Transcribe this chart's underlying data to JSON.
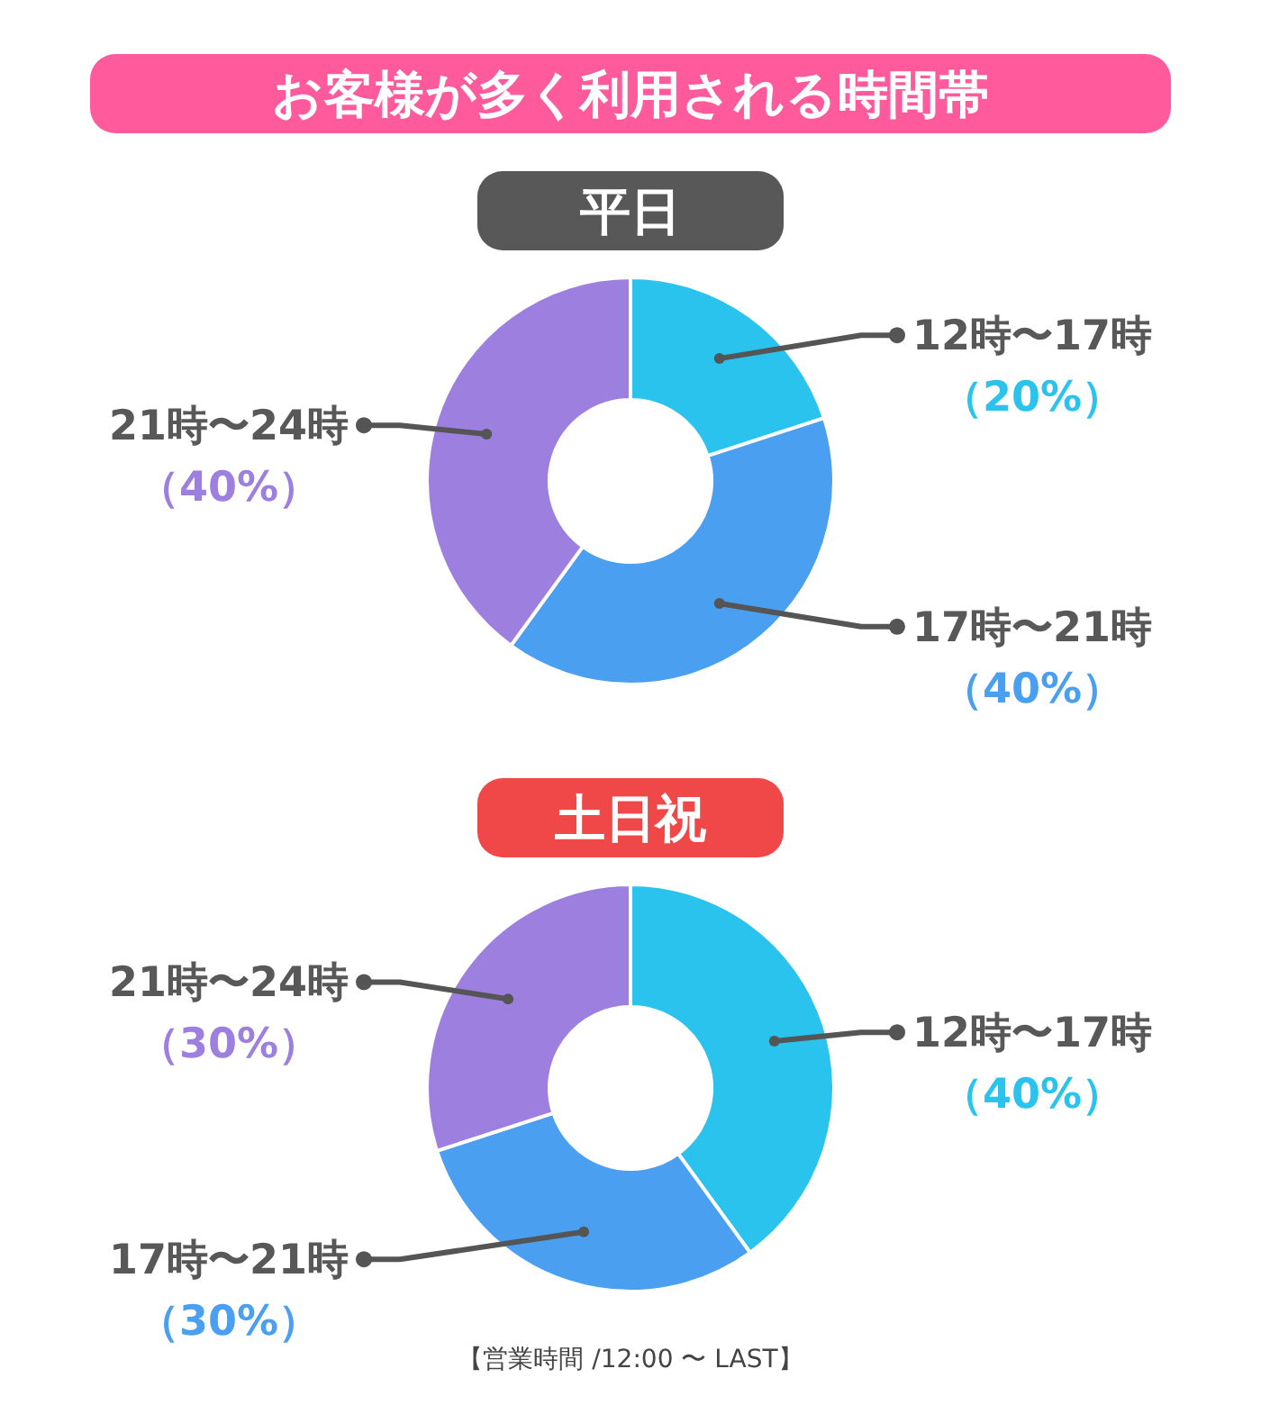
{
  "chart_data": [
    {
      "type": "donut",
      "title": "お客様が多く利用される時間帯",
      "subtitle": "平日",
      "categories": [
        "12時〜17時",
        "17時〜21時",
        "21時〜24時"
      ],
      "values": [
        20,
        40,
        40
      ],
      "colors": [
        "#29c3ee",
        "#4a9ff0",
        "#9d7fe0"
      ],
      "value_labels": [
        "（20%）",
        "（40%）",
        "（40%）"
      ]
    },
    {
      "type": "donut",
      "title": "土日祝",
      "categories": [
        "12時〜17時",
        "17時〜21時",
        "21時〜24時"
      ],
      "values": [
        40,
        30,
        30
      ],
      "colors": [
        "#29c3ee",
        "#4a9ff0",
        "#9d7fe0"
      ],
      "value_labels": [
        "（40%）",
        "（30%）",
        "（30%）"
      ],
      "annotations": [
        "【営業時間 /12:00 〜 LAST】"
      ]
    }
  ]
}
